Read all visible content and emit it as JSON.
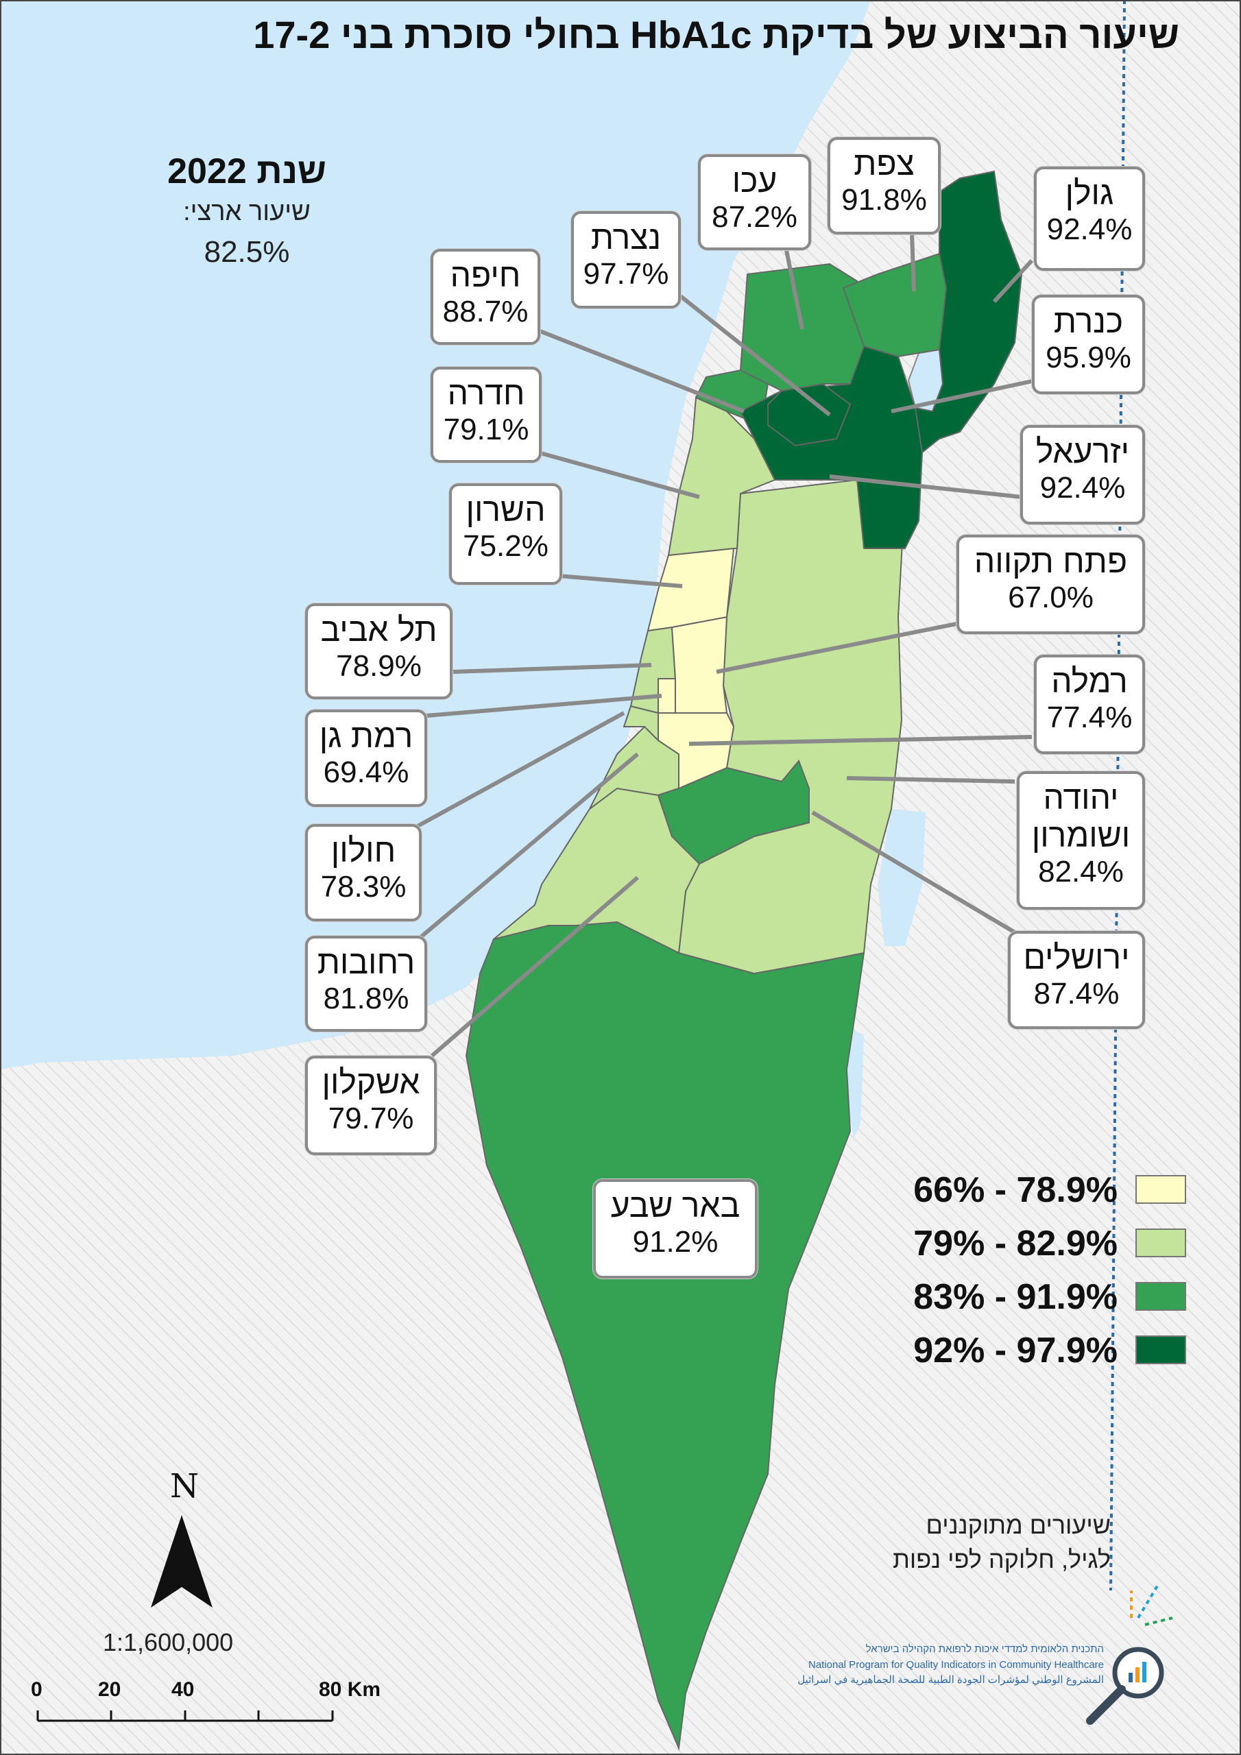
{
  "title": "שיעור הביצוע של בדיקת HbA1c בחולי סוכרת בני 17-2",
  "year_title": "שנת 2022",
  "national_label": "שיעור ארצי:",
  "national_value": "82.5%",
  "colors": {
    "sea": "#cde9fa",
    "outside": "#f1f1f1",
    "c1": "#fefdc6",
    "c2": "#c4e39b",
    "c3": "#34a153",
    "c4": "#006837",
    "callout_border": "#8a8a8a"
  },
  "regions": [
    {
      "key": "golan",
      "name": "גולן",
      "value": "92.4%"
    },
    {
      "key": "tsfat",
      "name": "צפת",
      "value": "91.8%"
    },
    {
      "key": "ako",
      "name": "עכו",
      "value": "87.2%"
    },
    {
      "key": "nazareth",
      "name": "נצרת",
      "value": "97.7%"
    },
    {
      "key": "haifa",
      "name": "חיפה",
      "value": "88.7%"
    },
    {
      "key": "kinneret",
      "name": "כנרת",
      "value": "95.9%"
    },
    {
      "key": "hadera",
      "name": "חדרה",
      "value": "79.1%"
    },
    {
      "key": "yizreel",
      "name": "יזרעאל",
      "value": "92.4%"
    },
    {
      "key": "sharon",
      "name": "השרון",
      "value": "75.2%"
    },
    {
      "key": "petah_tikva",
      "name": "פתח תקווה",
      "value": "67.0%"
    },
    {
      "key": "tel_aviv",
      "name": "תל אביב",
      "value": "78.9%"
    },
    {
      "key": "ramla",
      "name": "רמלה",
      "value": "77.4%"
    },
    {
      "key": "ramat_gan",
      "name": "רמת גן",
      "value": "69.4%"
    },
    {
      "key": "judea",
      "name": "יהודה ושומרון",
      "value": "82.4%"
    },
    {
      "key": "holon",
      "name": "חולון",
      "value": "78.3%"
    },
    {
      "key": "rehovot",
      "name": "רחובות",
      "value": "81.8%"
    },
    {
      "key": "jerusalem",
      "name": "ירושלים",
      "value": "87.4%"
    },
    {
      "key": "ashkelon",
      "name": "אשקלון",
      "value": "79.7%"
    },
    {
      "key": "beer_sheva",
      "name": "באר שבע",
      "value": "91.2%"
    }
  ],
  "legend": [
    {
      "label": "66% - 78.9%",
      "color": "#fefdc6"
    },
    {
      "label": "79% - 82.9%",
      "color": "#c4e39b"
    },
    {
      "label": "83% - 91.9%",
      "color": "#34a153"
    },
    {
      "label": "92% - 97.9%",
      "color": "#006837"
    }
  ],
  "note_line1": "שיעורים מתוקננים",
  "note_line2": "לגיל, חלוקה לפי נפות",
  "org_he": "התכנית הלאומית למדדי איכות לרפואת הקהילה בישראל",
  "org_en": "National Program for Quality Indicators in Community Healthcare",
  "org_ar": "المشروع الوطني لمؤشرات الجودة الطبية للصحة الجماهيرية في اسرائيل",
  "north_label": "N",
  "scale_ratio": "1:1,600,000",
  "scalebar": [
    "0",
    "20",
    "40",
    "80 Km"
  ]
}
